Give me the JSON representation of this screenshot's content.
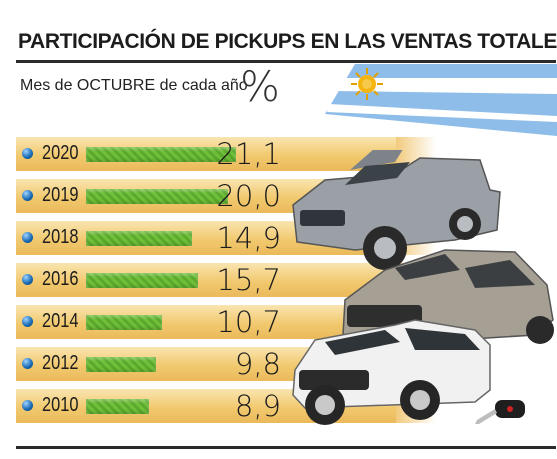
{
  "title": "PARTICIPACIÓN DE PICKUPS EN LAS VENTAS TOTALES",
  "subtitle": "Mes de OCTUBRE de cada año",
  "unit": "%",
  "colors": {
    "bar": "#6fbf3a",
    "row_band": "#f2c96f",
    "bullet": "#1d6fb8",
    "flag_blue": "#74acdf",
    "sun": "#f6b40e"
  },
  "icons": [
    "argentina-flag-icon",
    "pickup-truck-icon",
    "car-key-icon"
  ],
  "chart_data": {
    "type": "bar",
    "orientation": "horizontal",
    "title": "PARTICIPACIÓN DE PICKUPS EN LAS VENTAS TOTALES",
    "subtitle": "Mes de OCTUBRE de cada año",
    "categories": [
      "2020",
      "2019",
      "2018",
      "2016",
      "2014",
      "2012",
      "2010"
    ],
    "values": [
      21.1,
      20.0,
      14.9,
      15.7,
      10.7,
      9.8,
      8.9
    ],
    "labels": [
      "21,1",
      "20,0",
      "14,9",
      "15,7",
      "10,7",
      "9,8",
      "8,9"
    ],
    "unit": "%",
    "xlim": [
      0,
      21.1
    ],
    "grid": false,
    "legend": "none"
  }
}
